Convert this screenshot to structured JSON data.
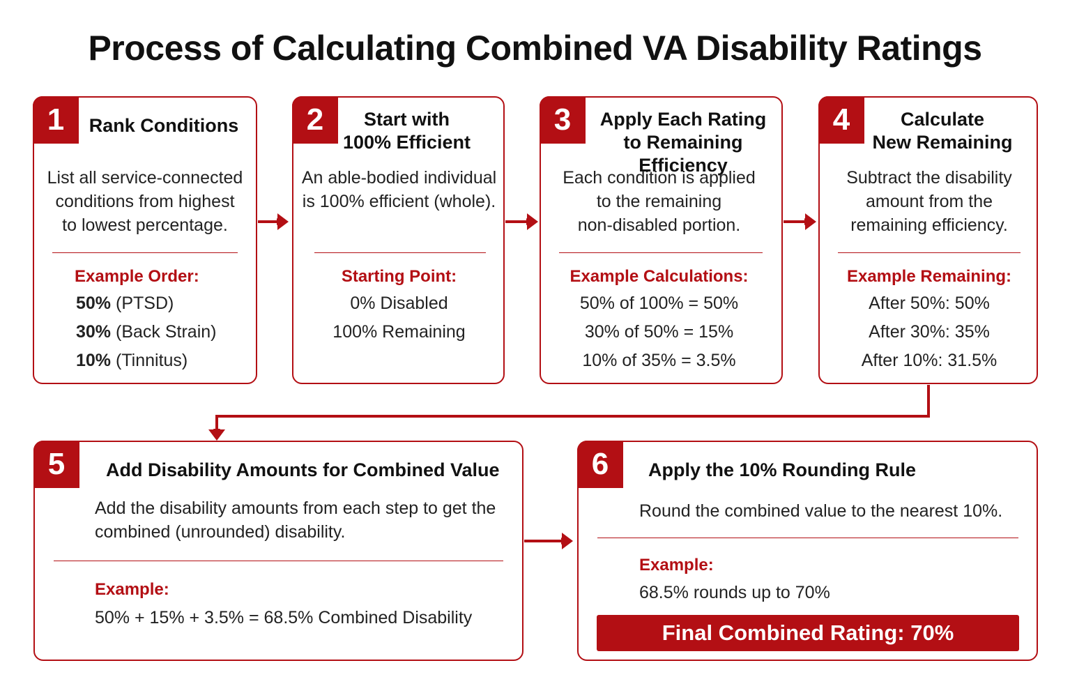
{
  "title": "Process of Calculating Combined VA Disability Ratings",
  "colors": {
    "accent": "#b30f14",
    "text": "#1a1a1a",
    "background": "#ffffff"
  },
  "steps": [
    {
      "number": "1",
      "title_lines": [
        "Rank Conditions"
      ],
      "description_lines": [
        "List all service-connected",
        "conditions from highest",
        "to lowest percentage."
      ],
      "subheading": "Example Order:",
      "items": [
        {
          "bold": "50%",
          "text": " (PTSD)"
        },
        {
          "bold": "30%",
          "text": " (Back Strain)"
        },
        {
          "bold": "10%",
          "text": " (Tinnitus)"
        }
      ]
    },
    {
      "number": "2",
      "title_lines": [
        "Start with",
        "100% Efficient"
      ],
      "description_lines": [
        "An able-bodied individual",
        "is 100% efficient (whole)."
      ],
      "subheading": "Starting Point:",
      "items": [
        "0% Disabled",
        "100% Remaining"
      ]
    },
    {
      "number": "3",
      "title_lines": [
        "Apply Each Rating",
        "to Remaining Efficiency"
      ],
      "description_lines": [
        "Each condition is applied",
        "to the remaining",
        "non-disabled portion."
      ],
      "subheading": "Example Calculations:",
      "items": [
        "50% of 100% = 50%",
        "30% of 50% = 15%",
        "10% of 35% = 3.5%"
      ]
    },
    {
      "number": "4",
      "title_lines": [
        "Calculate",
        "New Remaining"
      ],
      "description_lines": [
        "Subtract the disability",
        "amount from the",
        "remaining efficiency."
      ],
      "subheading": "Example Remaining:",
      "items": [
        "After 50%: 50%",
        "After 30%: 35%",
        "After 10%: 31.5%"
      ]
    },
    {
      "number": "5",
      "title_lines": [
        "Add Disability Amounts for Combined Value"
      ],
      "description_lines": [
        "Add the disability amounts from each step to get the",
        "combined (unrounded) disability."
      ],
      "subheading": "Example:",
      "items": [
        "50% + 15% + 3.5% = 68.5% Combined Disability"
      ]
    },
    {
      "number": "6",
      "title_lines": [
        "Apply the 10% Rounding Rule"
      ],
      "description_lines": [
        "Round the combined value to the nearest 10%."
      ],
      "subheading": "Example:",
      "items": [
        "68.5% rounds up to 70%"
      ],
      "final_label": "Final Combined Rating: 70%"
    }
  ]
}
